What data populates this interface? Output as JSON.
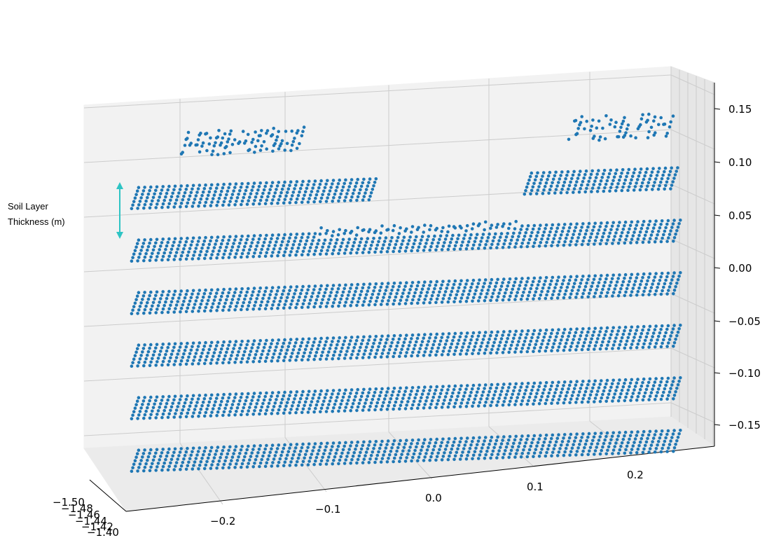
{
  "chart_data": {
    "type": "scatter",
    "title": "",
    "xlabel": "",
    "ylabel": "",
    "zlabel": "",
    "x_ticks": [
      "−0.2",
      "−0.1",
      "0.0",
      "0.1",
      "0.2"
    ],
    "y_ticks": [
      "−1.50",
      "−1.48",
      "−1.46",
      "−1.44",
      "−1.42",
      "−1.40"
    ],
    "z_ticks": [
      "0.15",
      "0.10",
      "0.05",
      "0.00",
      "−0.05",
      "−0.10",
      "−0.15"
    ],
    "xlim": [
      -0.25,
      0.25
    ],
    "ylim": [
      -1.5,
      -1.4
    ],
    "zlim": [
      -0.17,
      0.17
    ],
    "grid": true,
    "point_color": "#1f77b4",
    "series": [
      {
        "layer_z": -0.15,
        "x_range": [
          -0.245,
          0.245
        ],
        "extent": "full"
      },
      {
        "layer_z": -0.1,
        "x_range": [
          -0.245,
          0.245
        ],
        "extent": "full"
      },
      {
        "layer_z": -0.05,
        "x_range": [
          -0.245,
          0.245
        ],
        "extent": "full"
      },
      {
        "layer_z": 0.0,
        "x_range": [
          -0.245,
          0.245
        ],
        "extent": "full"
      },
      {
        "layer_z": 0.05,
        "x_range": [
          -0.245,
          0.245
        ],
        "extent": "full",
        "rough_top_range": [
          -0.08,
          0.1
        ]
      },
      {
        "layer_z": 0.1,
        "x_range": [
          -0.245,
          -0.03
        ],
        "extent": "left-patch"
      },
      {
        "layer_z": 0.1,
        "x_range": [
          0.11,
          0.245
        ],
        "extent": "right-patch"
      },
      {
        "layer_z": 0.15,
        "x_range": [
          -0.2,
          -0.09
        ],
        "extent": "top-left-cluster"
      },
      {
        "layer_z": 0.15,
        "x_range": [
          0.15,
          0.24
        ],
        "extent": "top-right-cluster"
      }
    ],
    "annotation": {
      "label_line1": "Soil Layer",
      "label_line2": "Thickness (m)",
      "arrow_color": "#2ec4c4"
    }
  }
}
